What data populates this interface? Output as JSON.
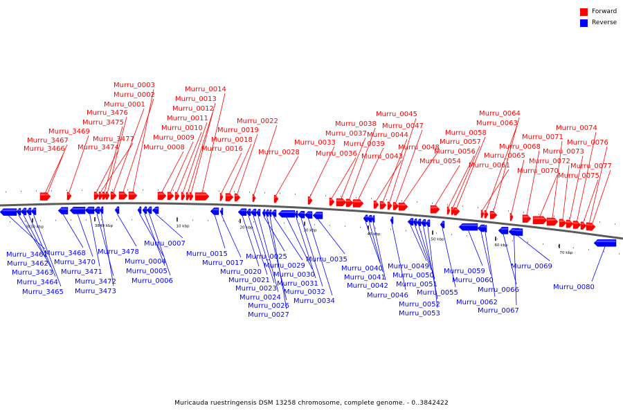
{
  "legend": {
    "forward_label": "Forward",
    "reverse_label": "Reverse",
    "forward_color": "#ff0000",
    "reverse_color": "#0000ff"
  },
  "caption": "Muricauda ruestringensis DSM 13258 chromosome, complete genome. - 0..3842422",
  "ticks": [
    "3830 kbp",
    "3840 kbp",
    "10 kbp",
    "20 kbp",
    "30 kbp",
    "40 kbp",
    "50 kbp",
    "60 kbp",
    "70 kbp"
  ],
  "forward_genes": [
    "Murru_3466",
    "Murru_3467",
    "Murru_3469",
    "Murru_3474",
    "Murru_3477",
    "Murru_3475",
    "Murru_3476",
    "Murru_0001",
    "Murru_0002",
    "Murru_0003",
    "Murru_0008",
    "Murru_0009",
    "Murru_0010",
    "Murru_0011",
    "Murru_0012",
    "Murru_0013",
    "Murru_0014",
    "Murru_0016",
    "Murru_0018",
    "Murru_0019",
    "Murru_0022",
    "Murru_0028",
    "Murru_0033",
    "Murru_0036",
    "Murru_0037",
    "Murru_0038",
    "Murru_0039",
    "Murru_0043",
    "Murru_0044",
    "Murru_0045",
    "Murru_0047",
    "Murru_0048",
    "Murru_0054",
    "Murru_0056",
    "Murru_0057",
    "Murru_0058",
    "Murru_0061",
    "Murru_0063",
    "Murru_0064",
    "Murru_0065",
    "Murru_0068",
    "Murru_0070",
    "Murru_0071",
    "Murru_0072",
    "Murru_0073",
    "Murru_0074",
    "Murru_0075",
    "Murru_0076",
    "Murru_0077"
  ],
  "reverse_genes": [
    "Murru_3461",
    "Murru_3462",
    "Murru_3463",
    "Murru_3464",
    "Murru_3465",
    "Murru_3468",
    "Murru_3470",
    "Murru_3471",
    "Murru_3472",
    "Murru_3473",
    "Murru_3478",
    "Murru_0004",
    "Murru_0005",
    "Murru_0006",
    "Murru_0007",
    "Murru_0015",
    "Murru_0017",
    "Murru_0020",
    "Murru_0021",
    "Murru_0023",
    "Murru_0024",
    "Murru_0025",
    "Murru_0026",
    "Murru_0027",
    "Murru_0029",
    "Murru_0030",
    "Murru_0031",
    "Murru_0032",
    "Murru_0034",
    "Murru_0035",
    "Murru_0040",
    "Murru_0041",
    "Murru_0042",
    "Murru_0046",
    "Murru_0049",
    "Murru_0050",
    "Murru_0051",
    "Murru_0052",
    "Murru_0053",
    "Murru_0055",
    "Murru_0059",
    "Murru_0060",
    "Murru_0062",
    "Murru_0066",
    "Murru_0067",
    "Murru_0069",
    "Murru_0080"
  ]
}
